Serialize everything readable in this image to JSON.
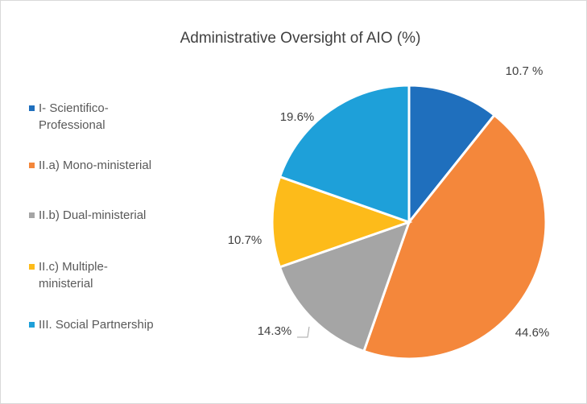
{
  "chart_data": {
    "type": "pie",
    "title": "Administrative Oversight of AIO (%)",
    "categories": [
      "I- Scientifico-Professional",
      "II.a) Mono-ministerial",
      "II.b) Dual-ministerial",
      "II.c) Multiple-ministerial",
      "III. Social Partnership"
    ],
    "values": [
      10.7,
      44.6,
      14.3,
      10.7,
      19.6
    ],
    "value_labels": [
      "10.7 %",
      "44.6%",
      "14.3%",
      "10.7%",
      "19.6%"
    ],
    "colors": [
      "#1f6fbd",
      "#f4873b",
      "#a5a5a5",
      "#fdbb1a",
      "#1ea0d9"
    ],
    "legend": "left"
  }
}
